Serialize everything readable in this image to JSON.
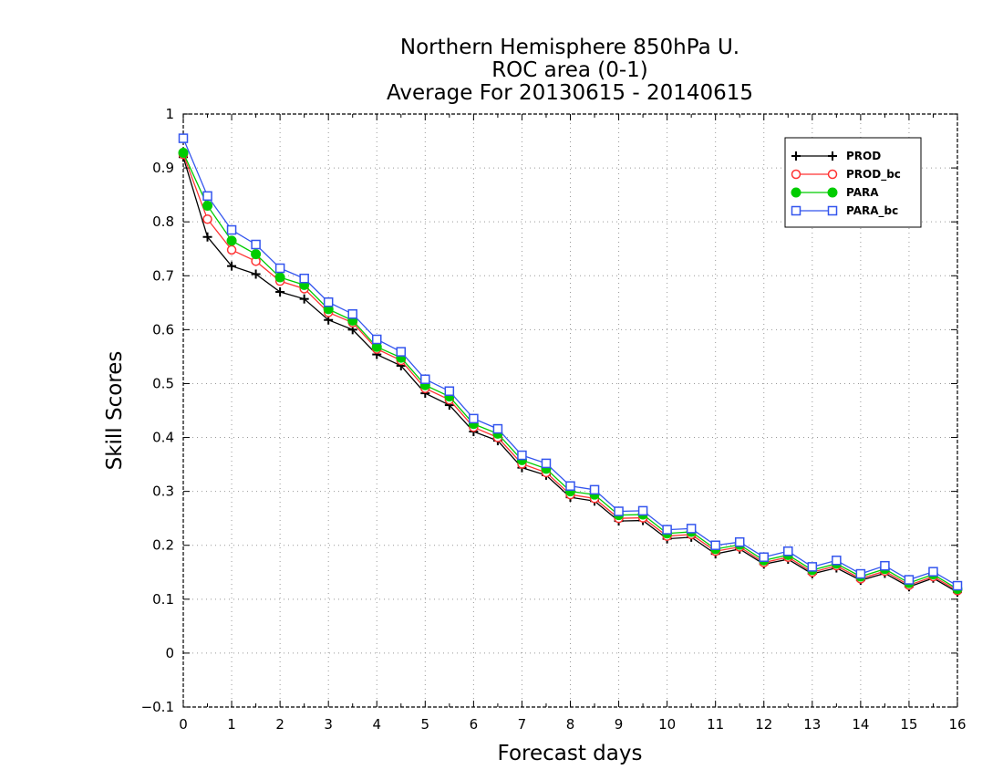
{
  "chart_data": {
    "type": "line",
    "title_lines": [
      "Northern Hemisphere 850hPa U.",
      "ROC area (0-1)",
      "Average For 20130615 - 20140615"
    ],
    "xlabel": "Forecast days",
    "ylabel": "Skill Scores",
    "xlim": [
      0,
      16
    ],
    "ylim": [
      -0.1,
      1
    ],
    "xticks": [
      "0",
      "1",
      "2",
      "3",
      "4",
      "5",
      "6",
      "7",
      "8",
      "9",
      "10",
      "11",
      "12",
      "13",
      "14",
      "15",
      "16"
    ],
    "yticks": [
      "−0.1",
      "0",
      "0.1",
      "0.2",
      "0.3",
      "0.4",
      "0.5",
      "0.6",
      "0.7",
      "0.8",
      "0.9",
      "1"
    ],
    "grid": true,
    "legend_position": "top-right",
    "x": [
      0,
      0.5,
      1,
      1.5,
      2,
      2.5,
      3,
      3.5,
      4,
      4.5,
      5,
      5.5,
      6,
      6.5,
      7,
      7.5,
      8,
      8.5,
      9,
      9.5,
      10,
      10.5,
      11,
      11.5,
      12,
      12.5,
      13,
      13.5,
      14,
      14.5,
      15,
      15.5,
      16
    ],
    "series": [
      {
        "name": "PROD",
        "color": "#000000",
        "marker": "plus",
        "values": [
          0.92,
          0.772,
          0.718,
          0.703,
          0.67,
          0.657,
          0.618,
          0.6,
          0.554,
          0.533,
          0.482,
          0.46,
          0.411,
          0.394,
          0.344,
          0.33,
          0.289,
          0.282,
          0.245,
          0.246,
          0.212,
          0.215,
          0.184,
          0.193,
          0.165,
          0.174,
          0.147,
          0.158,
          0.135,
          0.148,
          0.123,
          0.139,
          0.113
        ]
      },
      {
        "name": "PROD_bc",
        "color": "#ff3333",
        "marker": "open-circle",
        "values": [
          0.925,
          0.805,
          0.748,
          0.727,
          0.69,
          0.676,
          0.632,
          0.613,
          0.564,
          0.543,
          0.491,
          0.47,
          0.419,
          0.4,
          0.351,
          0.335,
          0.294,
          0.287,
          0.25,
          0.251,
          0.217,
          0.22,
          0.189,
          0.197,
          0.168,
          0.178,
          0.15,
          0.162,
          0.138,
          0.152,
          0.126,
          0.142,
          0.116
        ]
      },
      {
        "name": "PARA",
        "color": "#00cc00",
        "marker": "filled-circle",
        "values": [
          0.928,
          0.83,
          0.765,
          0.74,
          0.697,
          0.683,
          0.638,
          0.617,
          0.568,
          0.548,
          0.497,
          0.476,
          0.425,
          0.407,
          0.358,
          0.342,
          0.3,
          0.294,
          0.256,
          0.257,
          0.222,
          0.225,
          0.193,
          0.201,
          0.172,
          0.182,
          0.154,
          0.166,
          0.142,
          0.156,
          0.13,
          0.146,
          0.119
        ]
      },
      {
        "name": "PARA_bc",
        "color": "#3355ee",
        "marker": "open-square",
        "values": [
          0.955,
          0.848,
          0.785,
          0.758,
          0.714,
          0.695,
          0.651,
          0.629,
          0.582,
          0.559,
          0.508,
          0.486,
          0.435,
          0.416,
          0.367,
          0.352,
          0.31,
          0.303,
          0.263,
          0.264,
          0.229,
          0.231,
          0.2,
          0.206,
          0.178,
          0.189,
          0.16,
          0.172,
          0.147,
          0.162,
          0.136,
          0.151,
          0.125
        ]
      }
    ]
  }
}
